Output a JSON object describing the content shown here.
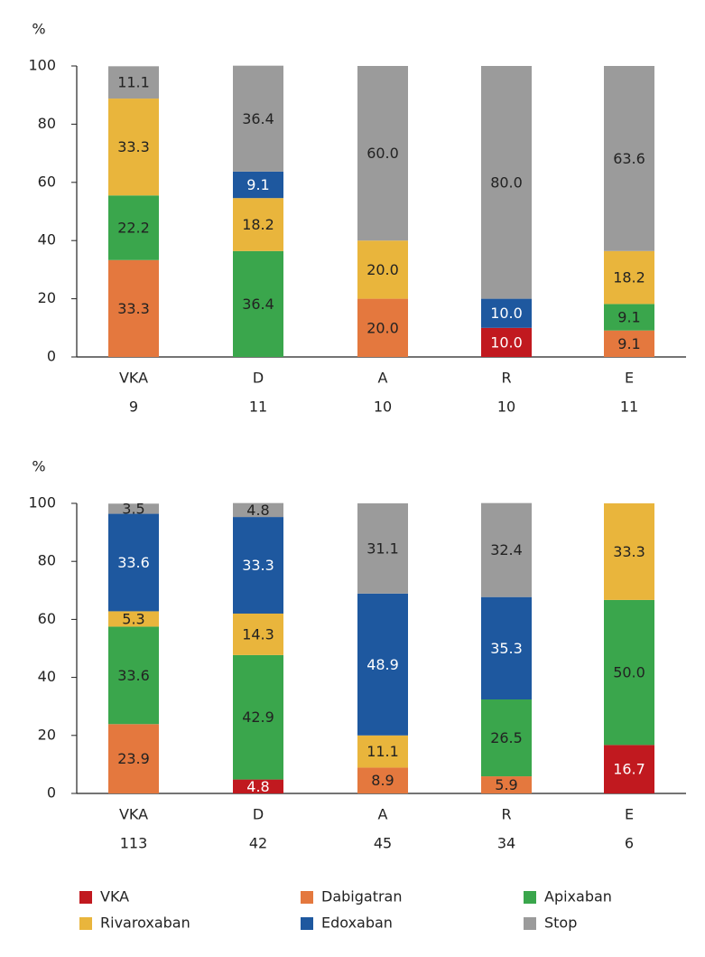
{
  "chart_data": [
    {
      "type": "stacked_bar",
      "y_label": "%",
      "categories": [
        "VKA",
        "D",
        "A",
        "R",
        "E"
      ],
      "category_counts": [
        "9",
        "11",
        "10",
        "10",
        "11"
      ],
      "ylim": [
        0,
        100
      ],
      "yticks": [
        0,
        20,
        40,
        60,
        80,
        100
      ],
      "series": [
        {
          "color": "#c1191f",
          "values": [
            null,
            null,
            null,
            10,
            null
          ],
          "value_labels": [
            null,
            null,
            null,
            "10.0",
            null
          ]
        },
        {
          "color": "#e4783e",
          "values": [
            33.3,
            null,
            20,
            null,
            9.1
          ],
          "value_labels": [
            "33.3",
            null,
            "20.0",
            null,
            "9.1"
          ]
        },
        {
          "color": "#3aa64c",
          "values": [
            22.2,
            36.4,
            null,
            null,
            9.1
          ],
          "value_labels": [
            "22.2",
            "36.4",
            null,
            null,
            "9.1"
          ]
        },
        {
          "color": "#e9b53c",
          "values": [
            33.3,
            18.2,
            20,
            null,
            18.2
          ],
          "value_labels": [
            "33.3",
            "18.2",
            "20.0",
            null,
            "18.2"
          ]
        },
        {
          "color": "#1e589f",
          "values": [
            null,
            9.1,
            null,
            10,
            null
          ],
          "value_labels": [
            null,
            "9.1",
            null,
            "10.0",
            null
          ]
        },
        {
          "color": "#9b9b9b",
          "values": [
            11.1,
            36.4,
            60,
            80,
            63.6
          ],
          "value_labels": [
            "11.1",
            "36.4",
            "60.0",
            "80.0",
            "63.6"
          ]
        }
      ]
    },
    {
      "type": "stacked_bar",
      "y_label": "%",
      "categories": [
        "VKA",
        "D",
        "A",
        "R",
        "E"
      ],
      "category_counts": [
        "113",
        "42",
        "45",
        "34",
        "6"
      ],
      "ylim": [
        0,
        100
      ],
      "yticks": [
        0,
        20,
        40,
        60,
        80,
        100
      ],
      "legend": "bottom",
      "series": [
        {
          "name": "VKA",
          "color": "#c1191f",
          "values": [
            null,
            4.8,
            null,
            null,
            16.7
          ],
          "value_labels": [
            null,
            "4.8",
            null,
            null,
            "16.7"
          ]
        },
        {
          "name": "Dabigatran",
          "color": "#e4783e",
          "values": [
            23.9,
            null,
            8.9,
            5.9,
            null
          ],
          "value_labels": [
            "23.9",
            null,
            "8.9",
            "5.9",
            null
          ]
        },
        {
          "name": "Apixaban",
          "color": "#3aa64c",
          "values": [
            33.6,
            42.9,
            null,
            26.5,
            50
          ],
          "value_labels": [
            "33.6",
            "42.9",
            null,
            "26.5",
            "50.0"
          ]
        },
        {
          "name": "Rivaroxaban",
          "color": "#e9b53c",
          "values": [
            5.3,
            14.3,
            11.1,
            null,
            33.3
          ],
          "value_labels": [
            "5.3",
            "14.3",
            "11.1",
            null,
            "33.3"
          ]
        },
        {
          "name": "Edoxaban",
          "color": "#1e589f",
          "values": [
            33.6,
            33.3,
            48.9,
            35.3,
            null
          ],
          "value_labels": [
            "33.6",
            "33.3",
            "48.9",
            "35.3",
            null
          ]
        },
        {
          "name": "Stop",
          "color": "#9b9b9b",
          "values": [
            3.5,
            4.8,
            31.1,
            32.4,
            null
          ],
          "value_labels": [
            "3.5",
            "4.8",
            "31.1",
            "32.4",
            null
          ]
        }
      ]
    }
  ]
}
